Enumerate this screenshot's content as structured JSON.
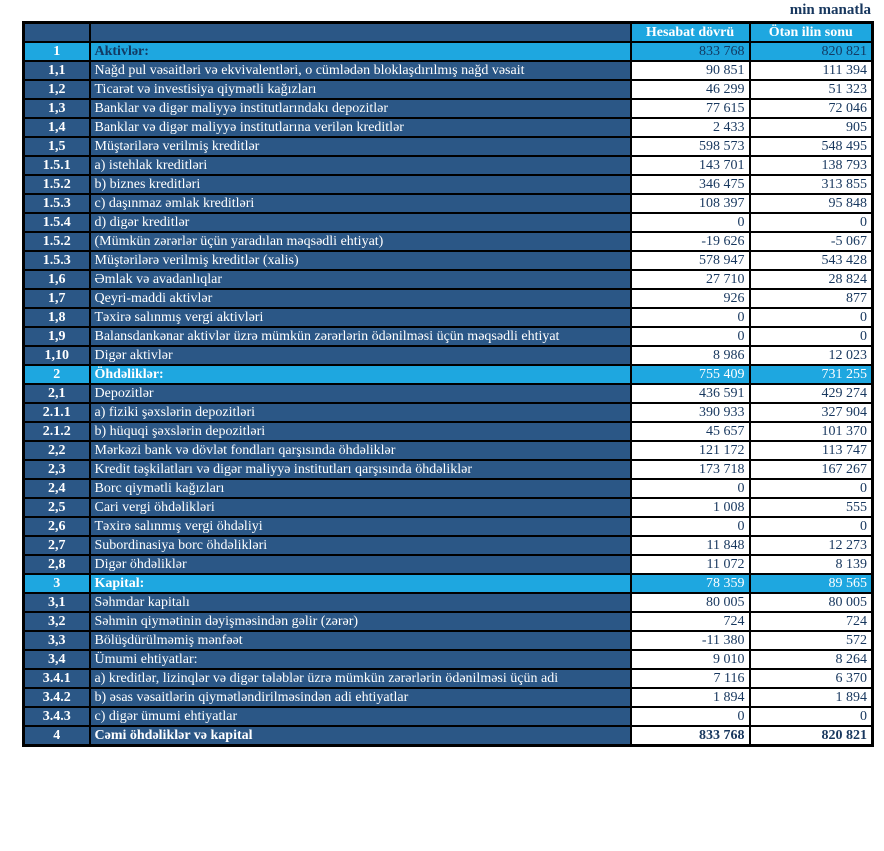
{
  "unit_label": "min manatla",
  "table": {
    "col_current": "Hesabat dövrü",
    "col_previous": "Ötən ilin sonu",
    "rows": [
      {
        "num": "1",
        "label": "Aktivlər:",
        "v1": "833 768",
        "v2": "820 821",
        "type": "section",
        "ink": "dark"
      },
      {
        "num": "1,1",
        "label": "Nağd pul vəsaitləri və  ekvivalentləri, o cümlədən bloklaşdırılmış nağd vəsait",
        "v1": "90 851",
        "v2": "111 394",
        "type": "item"
      },
      {
        "num": "1,2",
        "label": "Ticarət və investisiya qiymətli kağızları",
        "v1": "46 299",
        "v2": "51 323",
        "type": "item"
      },
      {
        "num": "1,3",
        "label": "Banklar və digər maliyyə institutlarındakı depozitlər",
        "v1": "77 615",
        "v2": "72 046",
        "type": "item"
      },
      {
        "num": "1,4",
        "label": "Banklar və digər maliyyə institutlarına verilən kreditlər",
        "v1": "2 433",
        "v2": "905",
        "type": "item"
      },
      {
        "num": "1,5",
        "label": "Müştərilərə verilmiş kreditlər",
        "v1": "598 573",
        "v2": "548 495",
        "type": "item"
      },
      {
        "num": "1.5.1",
        "label": "a) istehlak kreditləri",
        "v1": "143 701",
        "v2": "138 793",
        "type": "item"
      },
      {
        "num": "1.5.2",
        "label": "b) biznes kreditləri",
        "v1": "346 475",
        "v2": "313 855",
        "type": "item"
      },
      {
        "num": "1.5.3",
        "label": "c) daşınmaz əmlak kreditləri",
        "v1": "108 397",
        "v2": "95 848",
        "type": "item"
      },
      {
        "num": "1.5.4",
        "label": "d) digər kreditlər",
        "v1": "0",
        "v2": "0",
        "type": "item"
      },
      {
        "num": "1.5.2",
        "label": "(Mümkün zərərlər üçün yaradılan məqsədli ehtiyat)",
        "v1": "-19 626",
        "v2": "-5 067",
        "type": "item"
      },
      {
        "num": "1.5.3",
        "label": "Müştərilərə verilmiş kreditlər (xalis)",
        "v1": "578 947",
        "v2": "543 428",
        "type": "item"
      },
      {
        "num": "1,6",
        "label": "Əmlak və avadanlıqlar",
        "v1": "27 710",
        "v2": "28 824",
        "type": "item"
      },
      {
        "num": "1,7",
        "label": "Qeyri-maddi aktivlər",
        "v1": "926",
        "v2": "877",
        "type": "item"
      },
      {
        "num": "1,8",
        "label": "Təxirə salınmış vergi aktivləri",
        "v1": "0",
        "v2": "0",
        "type": "item"
      },
      {
        "num": "1,9",
        "label": "Balansdankənar aktivlər üzrə mümkün zərərlərin ödənilməsi üçün məqsədli ehtiyat",
        "v1": "0",
        "v2": "0",
        "type": "item"
      },
      {
        "num": "1,10",
        "label": "Digər aktivlər",
        "v1": "8 986",
        "v2": "12 023",
        "type": "item"
      },
      {
        "num": "2",
        "label": "Öhdəliklər:",
        "v1": "755 409",
        "v2": "731 255",
        "type": "section",
        "ink": "light"
      },
      {
        "num": "2,1",
        "label": "Depozitlər",
        "v1": "436 591",
        "v2": "429 274",
        "type": "item"
      },
      {
        "num": "2.1.1",
        "label": "a) fiziki şəxslərin depozitləri",
        "v1": "390 933",
        "v2": "327 904",
        "type": "item"
      },
      {
        "num": "2.1.2",
        "label": "b) hüquqi şəxslərin depozitləri",
        "v1": "45 657",
        "v2": "101 370",
        "type": "item"
      },
      {
        "num": "2,2",
        "label": "Mərkəzi bank və dövlət fondları qarşısında öhdəliklər",
        "v1": "121 172",
        "v2": "113 747",
        "type": "item"
      },
      {
        "num": "2,3",
        "label": "Kredit təşkilatları və digər maliyyə institutları qarşısında öhdəliklər",
        "v1": "173 718",
        "v2": "167 267",
        "type": "item"
      },
      {
        "num": "2,4",
        "label": "Borc qiymətli kağızları",
        "v1": "0",
        "v2": "0",
        "type": "item"
      },
      {
        "num": "2,5",
        "label": "Cari vergi öhdəlikləri",
        "v1": "1 008",
        "v2": "555",
        "type": "item"
      },
      {
        "num": "2,6",
        "label": "Təxirə salınmış vergi öhdəliyi",
        "v1": "0",
        "v2": "0",
        "type": "item"
      },
      {
        "num": "2,7",
        "label": "Subordinasiya borc öhdəlikləri",
        "v1": "11 848",
        "v2": "12 273",
        "type": "item"
      },
      {
        "num": "2,8",
        "label": "Digər öhdəliklər",
        "v1": "11 072",
        "v2": "8 139",
        "type": "item"
      },
      {
        "num": "3",
        "label": "Kapital:",
        "v1": "78 359",
        "v2": "89 565",
        "type": "section",
        "ink": "light"
      },
      {
        "num": "3,1",
        "label": "Səhmdar kapitalı",
        "v1": "80 005",
        "v2": "80 005",
        "type": "item"
      },
      {
        "num": "3,2",
        "label": "Səhmin qiymətinin dəyişməsindən gəlir (zərər)",
        "v1": "724",
        "v2": "724",
        "type": "item"
      },
      {
        "num": "3,3",
        "label": "Bölüşdürülməmiş mənfəət",
        "v1": "-11 380",
        "v2": "572",
        "type": "item"
      },
      {
        "num": "3,4",
        "label": "Ümumi ehtiyatlar:",
        "v1": "9 010",
        "v2": "8 264",
        "type": "item"
      },
      {
        "num": "3.4.1",
        "label": "a) kreditlər, lizinqlər və digər tələblər üzrə mümkün zərərlərin ödənilməsi üçün adi",
        "v1": "7 116",
        "v2": "6 370",
        "type": "item"
      },
      {
        "num": "3.4.2",
        "label": "b) əsas vəsaitlərin qiymətləndirilməsindən adi ehtiyatlar",
        "v1": "1 894",
        "v2": "1 894",
        "type": "item"
      },
      {
        "num": "3.4.3",
        "label": "c) digər ümumi ehtiyatlar",
        "v1": "0",
        "v2": "0",
        "type": "item"
      },
      {
        "num": "4",
        "label": "Cəmi öhdəliklər və kapital",
        "v1": "833 768",
        "v2": "820 821",
        "type": "total"
      }
    ]
  }
}
